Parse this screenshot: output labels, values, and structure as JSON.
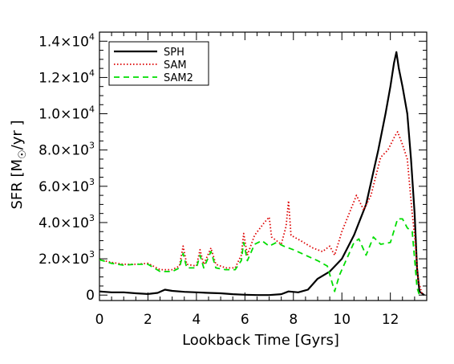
{
  "chart_data": {
    "type": "line",
    "xlabel": "Lookback Time [Gyrs]",
    "ylabel_prefix": "SFR [M",
    "ylabel_suffix": "/yr ]",
    "xlim": [
      0,
      13.5
    ],
    "ylim": [
      -300,
      14500
    ],
    "x_ticks": [
      0,
      2,
      4,
      6,
      8,
      10,
      12
    ],
    "y_ticks": [
      {
        "value": 0,
        "mantissa": "0",
        "exp": ""
      },
      {
        "value": 2000,
        "mantissa": "2.0×10",
        "exp": "3"
      },
      {
        "value": 4000,
        "mantissa": "4.0×10",
        "exp": "3"
      },
      {
        "value": 6000,
        "mantissa": "6.0×10",
        "exp": "3"
      },
      {
        "value": 8000,
        "mantissa": "8.0×10",
        "exp": "3"
      },
      {
        "value": 10000,
        "mantissa": "1.0×10",
        "exp": "4"
      },
      {
        "value": 12000,
        "mantissa": "1.2×10",
        "exp": "4"
      },
      {
        "value": 14000,
        "mantissa": "1.4×10",
        "exp": "4"
      }
    ],
    "legend_position": "top-left",
    "series": [
      {
        "name": "SPH",
        "color": "#000000",
        "style": "solid",
        "points": [
          [
            0,
            200
          ],
          [
            0.5,
            150
          ],
          [
            1.0,
            150
          ],
          [
            1.5,
            100
          ],
          [
            2.0,
            60
          ],
          [
            2.4,
            120
          ],
          [
            2.7,
            300
          ],
          [
            3.0,
            230
          ],
          [
            3.5,
            180
          ],
          [
            4.0,
            150
          ],
          [
            4.5,
            120
          ],
          [
            5.0,
            100
          ],
          [
            5.5,
            50
          ],
          [
            6.0,
            20
          ],
          [
            6.5,
            0
          ],
          [
            7.0,
            0
          ],
          [
            7.5,
            50
          ],
          [
            7.8,
            200
          ],
          [
            8.2,
            150
          ],
          [
            8.6,
            300
          ],
          [
            9.0,
            900
          ],
          [
            9.5,
            1300
          ],
          [
            10.0,
            2000
          ],
          [
            10.5,
            3300
          ],
          [
            11.0,
            5000
          ],
          [
            11.5,
            8000
          ],
          [
            11.8,
            10000
          ],
          [
            12.0,
            11500
          ],
          [
            12.15,
            12800
          ],
          [
            12.25,
            13400
          ],
          [
            12.35,
            12500
          ],
          [
            12.5,
            11500
          ],
          [
            12.7,
            10000
          ],
          [
            12.85,
            7500
          ],
          [
            13.0,
            4500
          ],
          [
            13.1,
            1500
          ],
          [
            13.2,
            200
          ],
          [
            13.4,
            0
          ]
        ]
      },
      {
        "name": "SAM",
        "color": "#dd0000",
        "style": "dotted",
        "points": [
          [
            0,
            1950
          ],
          [
            0.5,
            1800
          ],
          [
            1.0,
            1700
          ],
          [
            1.5,
            1700
          ],
          [
            2.0,
            1750
          ],
          [
            2.5,
            1400
          ],
          [
            3.0,
            1400
          ],
          [
            3.3,
            1600
          ],
          [
            3.45,
            2700
          ],
          [
            3.6,
            1700
          ],
          [
            4.0,
            1600
          ],
          [
            4.15,
            2500
          ],
          [
            4.3,
            1700
          ],
          [
            4.6,
            2600
          ],
          [
            4.8,
            1700
          ],
          [
            5.2,
            1500
          ],
          [
            5.6,
            1500
          ],
          [
            5.85,
            2200
          ],
          [
            5.95,
            3400
          ],
          [
            6.1,
            2200
          ],
          [
            6.4,
            3300
          ],
          [
            6.8,
            4000
          ],
          [
            7.0,
            4300
          ],
          [
            7.1,
            3200
          ],
          [
            7.5,
            2800
          ],
          [
            7.7,
            3800
          ],
          [
            7.8,
            5200
          ],
          [
            7.9,
            3300
          ],
          [
            8.3,
            3000
          ],
          [
            8.8,
            2600
          ],
          [
            9.2,
            2400
          ],
          [
            9.5,
            2700
          ],
          [
            9.7,
            2200
          ],
          [
            10.0,
            3500
          ],
          [
            10.3,
            4500
          ],
          [
            10.6,
            5500
          ],
          [
            10.9,
            4700
          ],
          [
            11.2,
            5500
          ],
          [
            11.6,
            7600
          ],
          [
            11.9,
            8000
          ],
          [
            12.2,
            8800
          ],
          [
            12.3,
            9000
          ],
          [
            12.5,
            8300
          ],
          [
            12.7,
            7500
          ],
          [
            12.9,
            4500
          ],
          [
            13.0,
            3300
          ],
          [
            13.15,
            800
          ],
          [
            13.3,
            100
          ]
        ]
      },
      {
        "name": "SAM2",
        "color": "#00dd00",
        "style": "dashed",
        "points": [
          [
            0,
            1950
          ],
          [
            0.5,
            1750
          ],
          [
            1.0,
            1650
          ],
          [
            1.5,
            1700
          ],
          [
            2.0,
            1700
          ],
          [
            2.5,
            1300
          ],
          [
            3.0,
            1300
          ],
          [
            3.3,
            1500
          ],
          [
            3.45,
            2300
          ],
          [
            3.6,
            1500
          ],
          [
            4.0,
            1500
          ],
          [
            4.15,
            2200
          ],
          [
            4.3,
            1500
          ],
          [
            4.6,
            2400
          ],
          [
            4.8,
            1500
          ],
          [
            5.2,
            1400
          ],
          [
            5.6,
            1400
          ],
          [
            5.85,
            1900
          ],
          [
            5.95,
            2900
          ],
          [
            6.1,
            1900
          ],
          [
            6.4,
            2800
          ],
          [
            6.7,
            3000
          ],
          [
            7.0,
            2700
          ],
          [
            7.3,
            2900
          ],
          [
            7.6,
            2700
          ],
          [
            8.0,
            2500
          ],
          [
            8.5,
            2200
          ],
          [
            9.0,
            1900
          ],
          [
            9.4,
            1600
          ],
          [
            9.7,
            200
          ],
          [
            9.9,
            1100
          ],
          [
            10.2,
            2000
          ],
          [
            10.5,
            2900
          ],
          [
            10.7,
            3100
          ],
          [
            11.0,
            2200
          ],
          [
            11.3,
            3200
          ],
          [
            11.6,
            2800
          ],
          [
            12.0,
            2900
          ],
          [
            12.3,
            4200
          ],
          [
            12.5,
            4200
          ],
          [
            12.7,
            3700
          ],
          [
            12.9,
            3500
          ],
          [
            13.0,
            2000
          ],
          [
            13.1,
            400
          ],
          [
            13.2,
            0
          ]
        ]
      }
    ]
  }
}
